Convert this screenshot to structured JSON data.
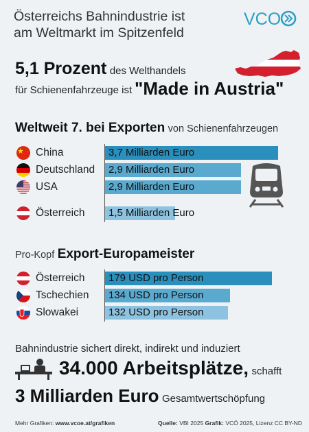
{
  "header": {
    "title_line1": "Österreichs Bahnindustrie ist",
    "title_line2": "am Weltmarkt im Spitzenfeld",
    "logo_text": "VCO",
    "logo_color": "#2a9fc6"
  },
  "headline": {
    "percent": "5,1 Prozent",
    "percent_suffix": "des Welthandels",
    "line2": "für Schienenfahrzeuge ist",
    "made_in": "\"Made in Austria\""
  },
  "export_section": {
    "title_bold": "Weltweit 7. bei Exporten",
    "title_rest": "von Schienenfahrzeugen"
  },
  "europe_section": {
    "prefix": "Pro-Kopf",
    "title_bold": "Export-Europameister"
  },
  "bottom": {
    "line1": "Bahnindustrie sichert direkt, indirekt und induziert",
    "jobs": "34.000 Arbeitsplätze,",
    "jobs_suffix": "schafft",
    "value": "3 Milliarden Euro",
    "value_suffix": "Gesamtwertschöpfung"
  },
  "footer": {
    "left_prefix": "Mehr Grafiken:",
    "left_link": "www.vcoe.at/grafiken",
    "source_label": "Quelle:",
    "source": "VBI 2025",
    "graphic_label": "Grafik:",
    "graphic": "VCÖ 2025, Lizenz CC BY-ND"
  },
  "icons": {
    "train": "train-icon",
    "worker": "office-worker-icon",
    "austria_map": "austria-map-icon"
  },
  "colors": {
    "bar_dark": "#2a8fbc",
    "bar_mid": "#5aaad0",
    "bar_light": "#8dc3e0",
    "austria_red": "#d3202f"
  },
  "chart_data": [
    {
      "type": "bar",
      "orientation": "horizontal",
      "categories": [
        "China",
        "Deutschland",
        "USA",
        "Österreich"
      ],
      "values": [
        3.7,
        2.9,
        2.9,
        1.5
      ],
      "value_labels": [
        "3,7 Milliarden Euro",
        "2,9 Milliarden Euro",
        "2,9 Milliarden Euro",
        "1,5 Milliarden Euro"
      ],
      "unit": "Milliarden Euro"
    },
    {
      "type": "bar",
      "orientation": "horizontal",
      "categories": [
        "Österreich",
        "Tschechien",
        "Slowakei"
      ],
      "values": [
        179,
        134,
        132
      ],
      "value_labels": [
        "179 USD pro Person",
        "134 USD pro Person",
        "132 USD pro Person"
      ],
      "unit": "USD pro Person"
    }
  ]
}
